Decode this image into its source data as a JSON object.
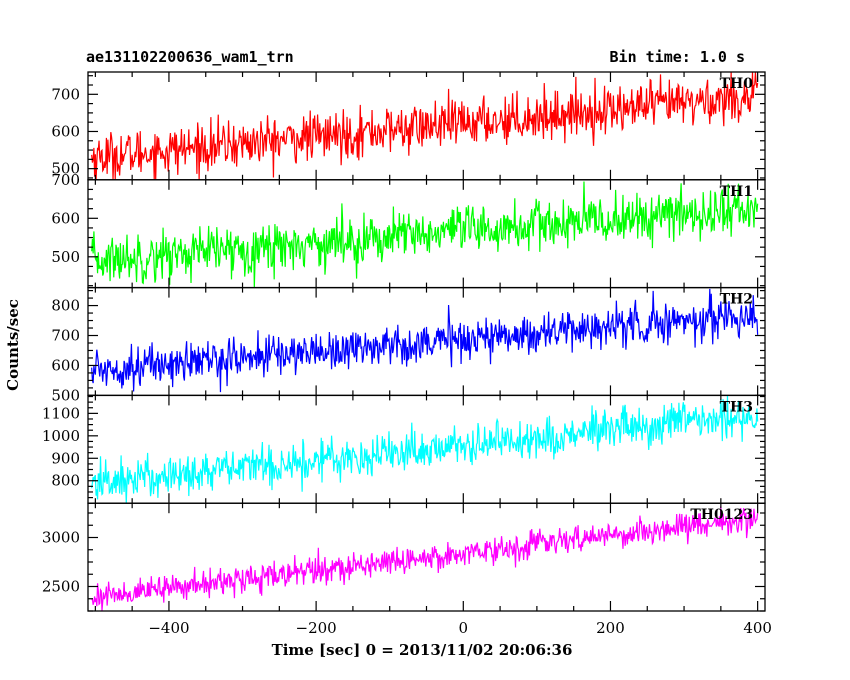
{
  "header": {
    "left_title": "ae131102200636_wam1_trn",
    "right_title": "Bin time: 1.0 s"
  },
  "axes": {
    "xlabel": "Time [sec] 0 = 2013/11/02 20:06:36",
    "ylabel": "Counts/sec",
    "xlim": [
      -510,
      410
    ],
    "x_ticks": [
      -400,
      -200,
      0,
      200,
      400
    ],
    "x_tick_labels": [
      "−400",
      "−200",
      "0",
      "200",
      "400"
    ]
  },
  "chart_data": {
    "type": "line",
    "xlabel": "Time [sec] 0 = 2013/11/02 20:06:36",
    "ylabel": "Counts/sec",
    "xlim": [
      -510,
      410
    ],
    "grid": false,
    "series": [
      {
        "name": "TH0",
        "color": "#ff0000",
        "ylim": [
          470,
          760
        ],
        "y_ticks": [
          500,
          600,
          700
        ],
        "x_range": [
          -505,
          400
        ],
        "trend_start": 530,
        "trend_end": 695,
        "noise": 38
      },
      {
        "name": "TH1",
        "color": "#00ff00",
        "ylim": [
          420,
          700
        ],
        "y_ticks": [
          500,
          600,
          700
        ],
        "x_range": [
          -505,
          400
        ],
        "trend_start": 490,
        "trend_end": 625,
        "noise": 38
      },
      {
        "name": "TH2",
        "color": "#0000ff",
        "ylim": [
          500,
          860
        ],
        "y_ticks": [
          500,
          600,
          700,
          800
        ],
        "x_range": [
          -505,
          400
        ],
        "trend_start": 585,
        "trend_end": 770,
        "noise": 40
      },
      {
        "name": "TH3",
        "color": "#00ffff",
        "ylim": [
          700,
          1180
        ],
        "y_ticks": [
          800,
          900,
          1000,
          1100
        ],
        "x_range": [
          -505,
          400
        ],
        "trend_start": 790,
        "trend_end": 1090,
        "noise": 55
      },
      {
        "name": "TH0123",
        "color": "#ff00ff",
        "ylim": [
          2250,
          3350
        ],
        "y_ticks": [
          2500,
          3000
        ],
        "x_range": [
          -505,
          400
        ],
        "trend_start": 2390,
        "trend_end": 3200,
        "noise": 80
      }
    ]
  }
}
